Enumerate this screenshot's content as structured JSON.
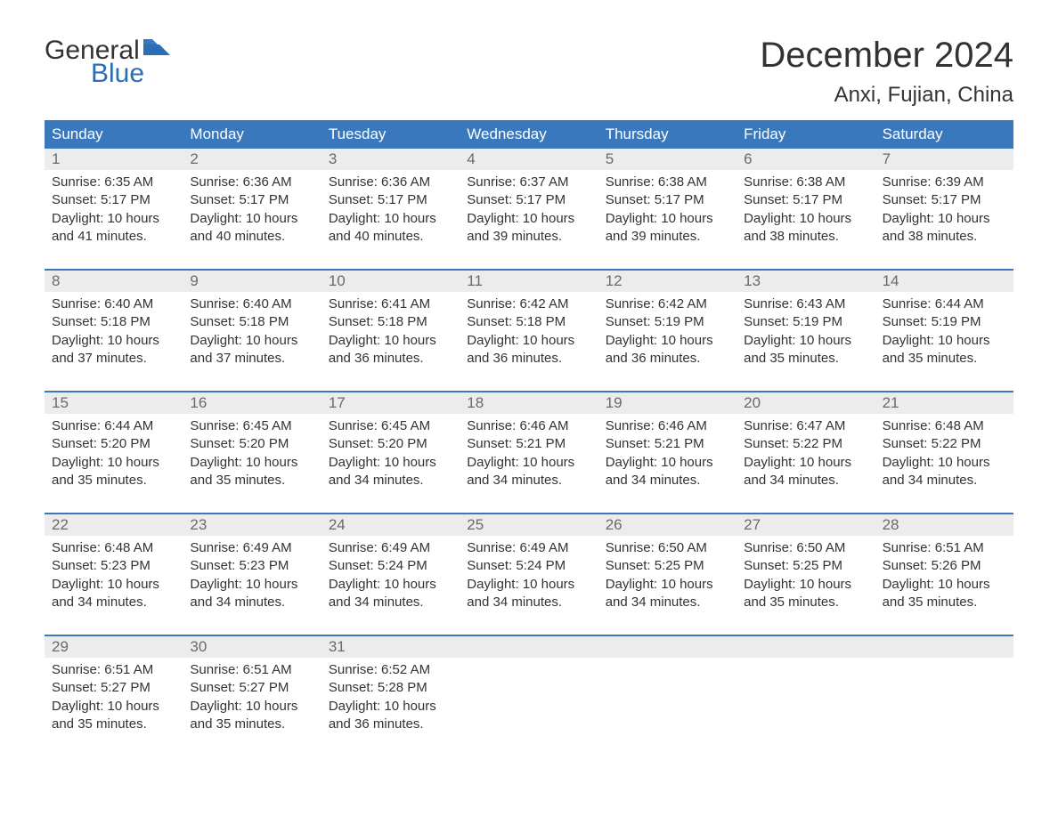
{
  "brand": {
    "word1": "General",
    "word2": "Blue"
  },
  "title": "December 2024",
  "location": "Anxi, Fujian, China",
  "colors": {
    "header_bg": "#3a78bd",
    "header_text": "#ffffff",
    "daynum_bg": "#ececec",
    "daynum_text": "#6a6a6a",
    "body_text": "#333333",
    "brand_blue": "#2a6eb6",
    "week_divider": "#3a78bd"
  },
  "typography": {
    "title_fontsize": 40,
    "location_fontsize": 24,
    "weekday_fontsize": 17,
    "daynum_fontsize": 17,
    "body_fontsize": 15
  },
  "weekdays": [
    "Sunday",
    "Monday",
    "Tuesday",
    "Wednesday",
    "Thursday",
    "Friday",
    "Saturday"
  ],
  "weeks": [
    [
      {
        "n": "1",
        "sunrise": "6:35 AM",
        "sunset": "5:17 PM",
        "daylight": "10 hours and 41 minutes."
      },
      {
        "n": "2",
        "sunrise": "6:36 AM",
        "sunset": "5:17 PM",
        "daylight": "10 hours and 40 minutes."
      },
      {
        "n": "3",
        "sunrise": "6:36 AM",
        "sunset": "5:17 PM",
        "daylight": "10 hours and 40 minutes."
      },
      {
        "n": "4",
        "sunrise": "6:37 AM",
        "sunset": "5:17 PM",
        "daylight": "10 hours and 39 minutes."
      },
      {
        "n": "5",
        "sunrise": "6:38 AM",
        "sunset": "5:17 PM",
        "daylight": "10 hours and 39 minutes."
      },
      {
        "n": "6",
        "sunrise": "6:38 AM",
        "sunset": "5:17 PM",
        "daylight": "10 hours and 38 minutes."
      },
      {
        "n": "7",
        "sunrise": "6:39 AM",
        "sunset": "5:17 PM",
        "daylight": "10 hours and 38 minutes."
      }
    ],
    [
      {
        "n": "8",
        "sunrise": "6:40 AM",
        "sunset": "5:18 PM",
        "daylight": "10 hours and 37 minutes."
      },
      {
        "n": "9",
        "sunrise": "6:40 AM",
        "sunset": "5:18 PM",
        "daylight": "10 hours and 37 minutes."
      },
      {
        "n": "10",
        "sunrise": "6:41 AM",
        "sunset": "5:18 PM",
        "daylight": "10 hours and 36 minutes."
      },
      {
        "n": "11",
        "sunrise": "6:42 AM",
        "sunset": "5:18 PM",
        "daylight": "10 hours and 36 minutes."
      },
      {
        "n": "12",
        "sunrise": "6:42 AM",
        "sunset": "5:19 PM",
        "daylight": "10 hours and 36 minutes."
      },
      {
        "n": "13",
        "sunrise": "6:43 AM",
        "sunset": "5:19 PM",
        "daylight": "10 hours and 35 minutes."
      },
      {
        "n": "14",
        "sunrise": "6:44 AM",
        "sunset": "5:19 PM",
        "daylight": "10 hours and 35 minutes."
      }
    ],
    [
      {
        "n": "15",
        "sunrise": "6:44 AM",
        "sunset": "5:20 PM",
        "daylight": "10 hours and 35 minutes."
      },
      {
        "n": "16",
        "sunrise": "6:45 AM",
        "sunset": "5:20 PM",
        "daylight": "10 hours and 35 minutes."
      },
      {
        "n": "17",
        "sunrise": "6:45 AM",
        "sunset": "5:20 PM",
        "daylight": "10 hours and 34 minutes."
      },
      {
        "n": "18",
        "sunrise": "6:46 AM",
        "sunset": "5:21 PM",
        "daylight": "10 hours and 34 minutes."
      },
      {
        "n": "19",
        "sunrise": "6:46 AM",
        "sunset": "5:21 PM",
        "daylight": "10 hours and 34 minutes."
      },
      {
        "n": "20",
        "sunrise": "6:47 AM",
        "sunset": "5:22 PM",
        "daylight": "10 hours and 34 minutes."
      },
      {
        "n": "21",
        "sunrise": "6:48 AM",
        "sunset": "5:22 PM",
        "daylight": "10 hours and 34 minutes."
      }
    ],
    [
      {
        "n": "22",
        "sunrise": "6:48 AM",
        "sunset": "5:23 PM",
        "daylight": "10 hours and 34 minutes."
      },
      {
        "n": "23",
        "sunrise": "6:49 AM",
        "sunset": "5:23 PM",
        "daylight": "10 hours and 34 minutes."
      },
      {
        "n": "24",
        "sunrise": "6:49 AM",
        "sunset": "5:24 PM",
        "daylight": "10 hours and 34 minutes."
      },
      {
        "n": "25",
        "sunrise": "6:49 AM",
        "sunset": "5:24 PM",
        "daylight": "10 hours and 34 minutes."
      },
      {
        "n": "26",
        "sunrise": "6:50 AM",
        "sunset": "5:25 PM",
        "daylight": "10 hours and 34 minutes."
      },
      {
        "n": "27",
        "sunrise": "6:50 AM",
        "sunset": "5:25 PM",
        "daylight": "10 hours and 35 minutes."
      },
      {
        "n": "28",
        "sunrise": "6:51 AM",
        "sunset": "5:26 PM",
        "daylight": "10 hours and 35 minutes."
      }
    ],
    [
      {
        "n": "29",
        "sunrise": "6:51 AM",
        "sunset": "5:27 PM",
        "daylight": "10 hours and 35 minutes."
      },
      {
        "n": "30",
        "sunrise": "6:51 AM",
        "sunset": "5:27 PM",
        "daylight": "10 hours and 35 minutes."
      },
      {
        "n": "31",
        "sunrise": "6:52 AM",
        "sunset": "5:28 PM",
        "daylight": "10 hours and 36 minutes."
      },
      null,
      null,
      null,
      null
    ]
  ],
  "labels": {
    "sunrise": "Sunrise: ",
    "sunset": "Sunset: ",
    "daylight": "Daylight: "
  }
}
